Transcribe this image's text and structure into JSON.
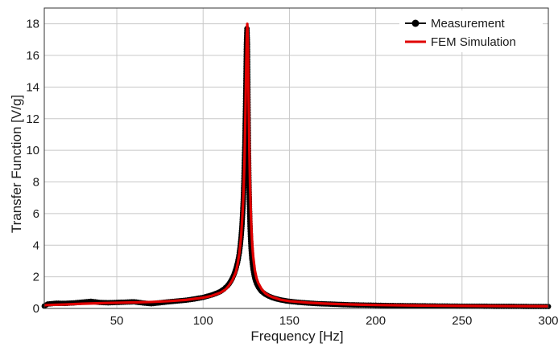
{
  "chart_data": {
    "type": "line",
    "title": "",
    "xlabel": "Frequency [Hz]",
    "ylabel": "Transfer Function [V/g]",
    "xlim": [
      8,
      300
    ],
    "ylim": [
      0,
      19
    ],
    "xticks": [
      50,
      100,
      150,
      200,
      250,
      300
    ],
    "yticks": [
      0,
      2,
      4,
      6,
      8,
      10,
      12,
      14,
      16,
      18
    ],
    "grid": true,
    "legend_position": "top-right",
    "series": [
      {
        "name": "Measurement",
        "style": "line-with-markers",
        "color": "#000000",
        "x": [
          8,
          10,
          15,
          20,
          25,
          30,
          35,
          40,
          45,
          50,
          55,
          60,
          65,
          70,
          75,
          80,
          85,
          90,
          95,
          100,
          105,
          108,
          110,
          112,
          114,
          115,
          116,
          117,
          118,
          119,
          120,
          120.5,
          121,
          121.5,
          122,
          122.5,
          123,
          123.3,
          123.6,
          123.9,
          124.2,
          124.5,
          124.8,
          125.1,
          125.4,
          125.7,
          126,
          126.3,
          126.6,
          126.9,
          127.2,
          127.5,
          127.8,
          128.2,
          128.6,
          129,
          129.5,
          130,
          130.5,
          131,
          132,
          133,
          134,
          135,
          136,
          138,
          140,
          142,
          145,
          148,
          150,
          155,
          160,
          165,
          170,
          175,
          180,
          185,
          190,
          200,
          210,
          220,
          230,
          240,
          250,
          260,
          270,
          280,
          290,
          300
        ],
        "y": [
          0.15,
          0.28,
          0.33,
          0.32,
          0.35,
          0.4,
          0.45,
          0.38,
          0.36,
          0.38,
          0.4,
          0.42,
          0.35,
          0.3,
          0.36,
          0.42,
          0.47,
          0.52,
          0.6,
          0.7,
          0.85,
          0.97,
          1.07,
          1.22,
          1.42,
          1.55,
          1.72,
          1.92,
          2.18,
          2.5,
          2.92,
          3.2,
          3.52,
          3.95,
          4.5,
          5.2,
          6.2,
          6.9,
          7.9,
          9.2,
          10.5,
          12.3,
          14.4,
          16.7,
          17.7,
          16.7,
          13.2,
          9.8,
          7.8,
          6.3,
          5.2,
          4.4,
          3.8,
          3.2,
          2.8,
          2.45,
          2.15,
          1.9,
          1.72,
          1.57,
          1.35,
          1.2,
          1.07,
          0.98,
          0.9,
          0.78,
          0.69,
          0.62,
          0.54,
          0.48,
          0.45,
          0.39,
          0.35,
          0.31,
          0.29,
          0.27,
          0.25,
          0.23,
          0.22,
          0.2,
          0.18,
          0.17,
          0.16,
          0.15,
          0.14,
          0.14,
          0.13,
          0.13,
          0.12,
          0.12
        ]
      },
      {
        "name": "FEM Simulation",
        "style": "line",
        "color": "#e00000",
        "x": [
          8,
          10,
          20,
          30,
          40,
          50,
          60,
          70,
          80,
          90,
          100,
          105,
          110,
          113,
          115,
          117,
          119,
          120,
          121,
          122,
          123,
          123.5,
          124,
          124.5,
          125,
          125.3,
          125.6,
          126,
          126.4,
          126.8,
          127.2,
          127.6,
          128,
          128.5,
          129,
          130,
          131,
          132,
          134,
          136,
          138,
          140,
          145,
          150,
          160,
          170,
          180,
          190,
          200,
          220,
          240,
          260,
          280,
          300
        ],
        "y": [
          0.2,
          0.22,
          0.25,
          0.3,
          0.33,
          0.36,
          0.38,
          0.41,
          0.46,
          0.54,
          0.68,
          0.8,
          1.0,
          1.2,
          1.45,
          1.8,
          2.3,
          2.8,
          3.5,
          4.5,
          6.3,
          7.6,
          9.5,
          12.2,
          15.5,
          17.2,
          18.0,
          16.4,
          13.0,
          10.0,
          7.8,
          6.2,
          5.0,
          4.0,
          3.3,
          2.4,
          1.9,
          1.6,
          1.2,
          0.96,
          0.82,
          0.72,
          0.55,
          0.46,
          0.37,
          0.31,
          0.27,
          0.24,
          0.22,
          0.19,
          0.17,
          0.16,
          0.15,
          0.14
        ]
      }
    ]
  }
}
